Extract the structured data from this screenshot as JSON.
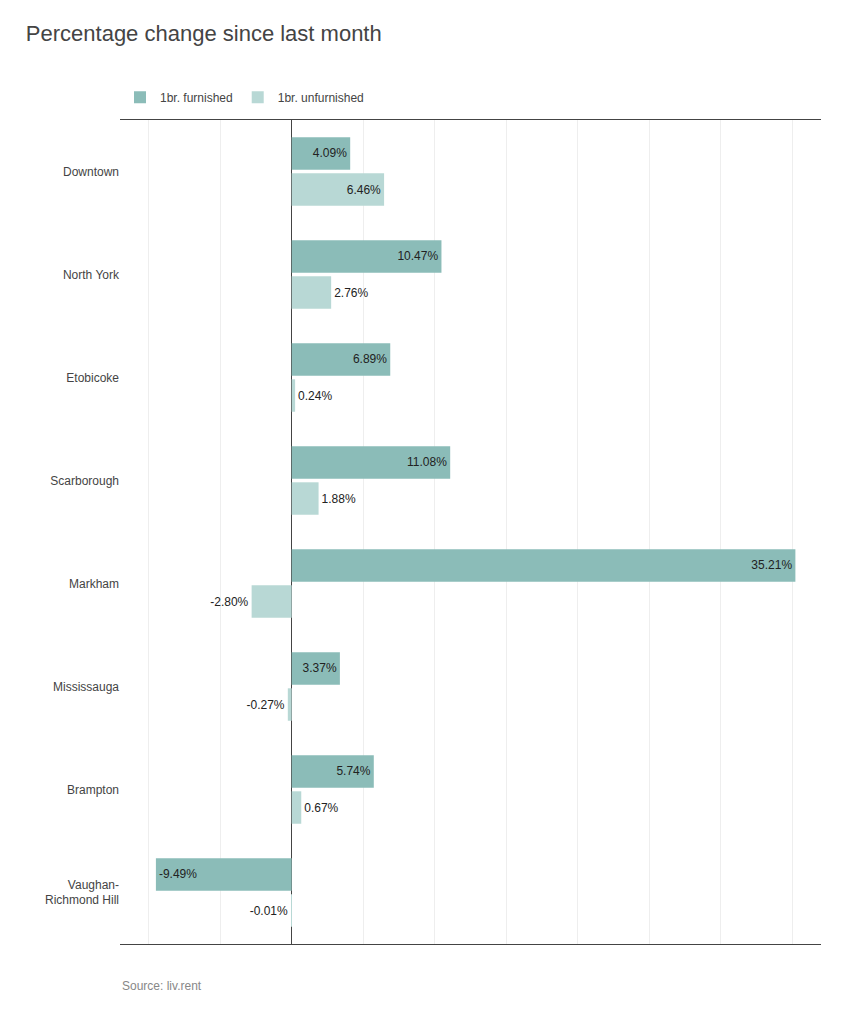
{
  "chart_data": {
    "type": "bar",
    "orientation": "horizontal",
    "title": "Percentage change since last month",
    "annotations": [
      "Source: liv.rent"
    ],
    "categories": [
      "Downtown",
      "North York",
      "Etobicoke",
      "Scarborough",
      "Markham",
      "Mississauga",
      "Brampton",
      "Vaughan-\nRichmond Hill"
    ],
    "series": [
      {
        "name": "1br. furnished",
        "color": "#8bbcb8",
        "values": [
          4.09,
          10.47,
          6.89,
          11.08,
          35.21,
          3.37,
          5.74,
          -9.49
        ],
        "value_labels": [
          "4.09%",
          "10.47%",
          "6.89%",
          "11.08%",
          "35.21%",
          "3.37%",
          "5.74%",
          "-9.49%"
        ]
      },
      {
        "name": "1br. unfurnished",
        "color": "#b8d8d5",
        "values": [
          6.46,
          2.76,
          0.24,
          1.88,
          -2.8,
          -0.27,
          0.67,
          -0.01
        ],
        "value_labels": [
          "6.46%",
          "2.76%",
          "0.24%",
          "1.88%",
          "-2.80%",
          "-0.27%",
          "0.67%",
          "-0.01%"
        ]
      }
    ],
    "xlim": [
      -12,
      37
    ],
    "xticks": [
      -10,
      -5,
      0,
      5,
      10,
      15,
      20,
      25,
      30,
      35
    ],
    "grid": true,
    "tick_labels": "y",
    "data_labels": true,
    "legend": "top"
  }
}
